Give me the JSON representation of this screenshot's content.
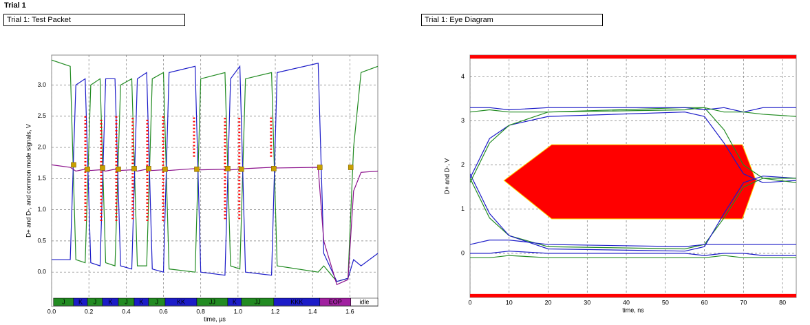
{
  "page": {
    "title": "Trial 1"
  },
  "chart_data": [
    {
      "type": "line",
      "title": "Trial 1: Test Packet",
      "x_label": "time, µs",
      "y_label": "D+ and D-, and common mode signals, V",
      "xlim": [
        0,
        1.75
      ],
      "ylim": [
        -0.55,
        3.48
      ],
      "xticks": [
        {
          "value": 0,
          "label": "0.0"
        },
        {
          "value": 0.2,
          "label": "0.2"
        },
        {
          "value": 0.4,
          "label": "0.4"
        },
        {
          "value": 0.6,
          "label": "0.6"
        },
        {
          "value": 0.8,
          "label": "0.8"
        },
        {
          "value": 1.0,
          "label": "1.0"
        },
        {
          "value": 1.2,
          "label": "1.2"
        },
        {
          "value": 1.4,
          "label": "1.4"
        },
        {
          "value": 1.6,
          "label": "1.6"
        }
      ],
      "yticks": [
        {
          "value": 0,
          "label": "0.0"
        },
        {
          "value": 0.5,
          "label": "0.5"
        },
        {
          "value": 1.0,
          "label": "1.0"
        },
        {
          "value": 1.5,
          "label": "1.5"
        },
        {
          "value": 2.0,
          "label": "2.0"
        },
        {
          "value": 2.5,
          "label": "2.5"
        },
        {
          "value": 3.0,
          "label": "3.0"
        }
      ],
      "grid": true,
      "x": [
        0.0,
        0.1,
        0.13,
        0.18,
        0.21,
        0.26,
        0.29,
        0.34,
        0.37,
        0.43,
        0.46,
        0.51,
        0.54,
        0.6,
        0.63,
        0.77,
        0.8,
        0.93,
        0.96,
        1.01,
        1.04,
        1.18,
        1.21,
        1.43,
        1.46,
        1.53,
        1.59,
        1.62,
        1.66,
        1.75
      ],
      "series": [
        {
          "color": "#228b22",
          "values": [
            3.4,
            3.3,
            0.2,
            0.15,
            3.0,
            3.1,
            0.15,
            0.1,
            3.0,
            3.1,
            0.1,
            0.1,
            3.1,
            3.2,
            0.05,
            0.0,
            3.1,
            3.2,
            0.1,
            0.05,
            3.1,
            3.2,
            0.1,
            0.0,
            0.1,
            -0.15,
            -0.1,
            2.0,
            3.2,
            3.3
          ]
        },
        {
          "color": "#1c1cc8",
          "values": [
            0.2,
            0.2,
            3.0,
            3.1,
            0.15,
            0.1,
            3.1,
            3.1,
            0.1,
            0.05,
            3.1,
            3.2,
            0.05,
            0.0,
            3.2,
            3.3,
            0.0,
            -0.05,
            3.1,
            3.3,
            0.0,
            -0.05,
            3.2,
            3.35,
            0.3,
            -0.15,
            -0.1,
            0.2,
            0.1,
            0.3
          ]
        },
        {
          "color": "#8b108b",
          "values": [
            1.72,
            1.68,
            1.62,
            1.65,
            1.63,
            1.64,
            1.62,
            1.65,
            1.63,
            1.64,
            1.62,
            1.65,
            1.63,
            1.64,
            1.63,
            1.66,
            1.64,
            1.65,
            1.64,
            1.65,
            1.66,
            1.68,
            1.67,
            1.68,
            0.5,
            -0.2,
            -0.12,
            1.3,
            1.6,
            1.62
          ]
        }
      ],
      "samples": {
        "color": "#ff0000",
        "x": [
          0.181,
          0.266,
          0.347,
          0.435,
          0.513,
          0.598,
          0.764,
          0.93,
          1.007,
          1.177
        ],
        "low": [
          0.82,
          0.82,
          0.82,
          0.85,
          0.82,
          0.82,
          1.85,
          0.85,
          0.85,
          1.85
        ],
        "high": [
          2.5,
          2.45,
          2.5,
          2.5,
          2.45,
          2.5,
          2.5,
          2.5,
          2.5,
          2.5
        ]
      },
      "markers": {
        "color": "#c8a000",
        "x": [
          0.118,
          0.192,
          0.273,
          0.358,
          0.443,
          0.52,
          0.609,
          0.779,
          0.945,
          1.018,
          1.192,
          1.439,
          1.605
        ],
        "values": [
          1.72,
          1.65,
          1.67,
          1.65,
          1.66,
          1.66,
          1.65,
          1.65,
          1.66,
          1.65,
          1.66,
          1.68,
          1.68
        ]
      },
      "bus_segments": [
        {
          "label": "J",
          "start": 0.01,
          "end": 0.118,
          "color": "#228b22"
        },
        {
          "label": "K",
          "start": 0.118,
          "end": 0.192,
          "color": "#1c1cc8"
        },
        {
          "label": "J",
          "start": 0.192,
          "end": 0.273,
          "color": "#228b22"
        },
        {
          "label": "K",
          "start": 0.273,
          "end": 0.358,
          "color": "#1c1cc8"
        },
        {
          "label": "J",
          "start": 0.358,
          "end": 0.443,
          "color": "#228b22"
        },
        {
          "label": "K",
          "start": 0.443,
          "end": 0.52,
          "color": "#1c1cc8"
        },
        {
          "label": "J",
          "start": 0.52,
          "end": 0.609,
          "color": "#228b22"
        },
        {
          "label": "KK",
          "start": 0.609,
          "end": 0.779,
          "color": "#1c1cc8"
        },
        {
          "label": "JJ",
          "start": 0.779,
          "end": 0.945,
          "color": "#228b22"
        },
        {
          "label": "K",
          "start": 0.945,
          "end": 1.018,
          "color": "#1c1cc8"
        },
        {
          "label": "JJ",
          "start": 1.018,
          "end": 1.192,
          "color": "#228b22"
        },
        {
          "label": "KKK",
          "start": 1.192,
          "end": 1.439,
          "color": "#1c1cc8"
        },
        {
          "label": "EOP",
          "start": 1.439,
          "end": 1.605,
          "color": "#a020a0"
        },
        {
          "label": "idle",
          "start": 1.605,
          "end": 1.75,
          "color": "#ffffff"
        }
      ]
    },
    {
      "type": "line",
      "title": "Trial 1: Eye Diagram",
      "x_label": "time, ns",
      "y_label": "D+ and D-, V",
      "xlim": [
        0,
        83.5
      ],
      "ylim": [
        -1.0,
        4.49
      ],
      "xticks": [
        0,
        10,
        20,
        30,
        40,
        50,
        60,
        70,
        80
      ],
      "yticks": [
        0,
        1,
        2,
        3,
        4
      ],
      "grid": true,
      "x": [
        0,
        5,
        10,
        20,
        55,
        60,
        65,
        70,
        75,
        83.5
      ],
      "series": [
        {
          "color": "#1c1cc8",
          "values": [
            1.7,
            2.6,
            2.9,
            3.1,
            3.2,
            3.1,
            2.5,
            1.8,
            1.6,
            1.65
          ]
        },
        {
          "color": "#228b22",
          "values": [
            1.7,
            0.8,
            0.4,
            0.15,
            0.1,
            0.2,
            0.8,
            1.5,
            1.7,
            1.6
          ]
        },
        {
          "color": "#1c1cc8",
          "values": [
            1.8,
            0.9,
            0.4,
            0.1,
            0.05,
            0.15,
            0.9,
            1.6,
            1.75,
            1.7
          ]
        },
        {
          "color": "#228b22",
          "values": [
            1.6,
            2.5,
            2.9,
            3.2,
            3.3,
            3.3,
            2.8,
            2.0,
            1.7,
            1.7
          ]
        },
        {
          "color": "#1c1cc8",
          "values": [
            3.3,
            3.3,
            3.25,
            3.3,
            3.3,
            3.25,
            3.3,
            3.2,
            3.3,
            3.3
          ]
        },
        {
          "color": "#228b22",
          "values": [
            3.2,
            3.25,
            3.2,
            3.2,
            3.25,
            3.3,
            3.2,
            3.2,
            3.15,
            3.1
          ]
        },
        {
          "color": "#1c1cc8",
          "values": [
            0.0,
            0.0,
            0.05,
            0.0,
            0.0,
            -0.05,
            0.0,
            0.0,
            -0.05,
            -0.05
          ]
        },
        {
          "color": "#228b22",
          "values": [
            -0.1,
            -0.1,
            -0.05,
            -0.1,
            -0.1,
            -0.1,
            -0.05,
            -0.1,
            -0.1,
            -0.1
          ]
        },
        {
          "color": "#1c1cc8",
          "values": [
            0.2,
            0.3,
            0.3,
            0.2,
            0.15,
            0.2,
            0.2,
            0.2,
            0.2,
            0.2
          ]
        }
      ],
      "mask": {
        "color": "#ff0000",
        "x": [
          8.7,
          20.9,
          69.7,
          73.2,
          69.7,
          20.9
        ],
        "y": [
          1.65,
          2.46,
          2.46,
          1.65,
          0.78,
          0.78
        ]
      },
      "limit_lines": {
        "color": "#ff0000",
        "values": [
          4.45,
          -0.96
        ]
      }
    }
  ]
}
